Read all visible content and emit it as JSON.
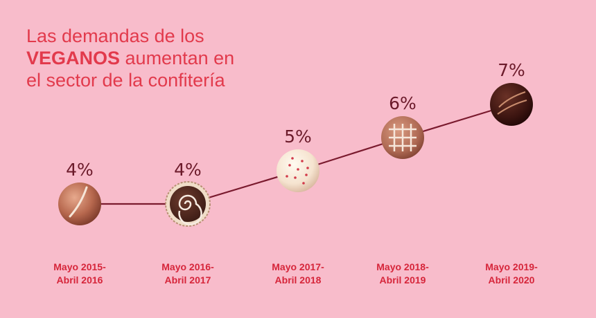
{
  "title": {
    "line1": "Las demandas de los",
    "line2_emphasis": "VEGANOS",
    "line2_rest": " aumentan en",
    "line3": "el sector de la confitería"
  },
  "colors": {
    "background": "#f8bccb",
    "title": "#e23a4c",
    "label": "#d6253a",
    "value": "#6b1a2a",
    "line": "#7a1a2e"
  },
  "chart_data": {
    "type": "line",
    "categories": [
      [
        "Mayo 2015-",
        "Abril 2016"
      ],
      [
        "Mayo 2016-",
        "Abril 2017"
      ],
      [
        "Mayo 2017-",
        "Abril 2018"
      ],
      [
        "Mayo 2018-",
        "Abril 2019"
      ],
      [
        "Mayo 2019-",
        "Abril 2020"
      ]
    ],
    "values": [
      4,
      4,
      5,
      6,
      7
    ],
    "value_labels": [
      "4%",
      "4%",
      "5%",
      "6%",
      "7%"
    ],
    "markers": [
      "milk-chocolate-truffle",
      "swirl-chocolate",
      "white-chocolate-truffle",
      "lattice-chocolate",
      "dark-chocolate-truffle"
    ],
    "unit": "%",
    "grid": false,
    "legend": "none"
  }
}
